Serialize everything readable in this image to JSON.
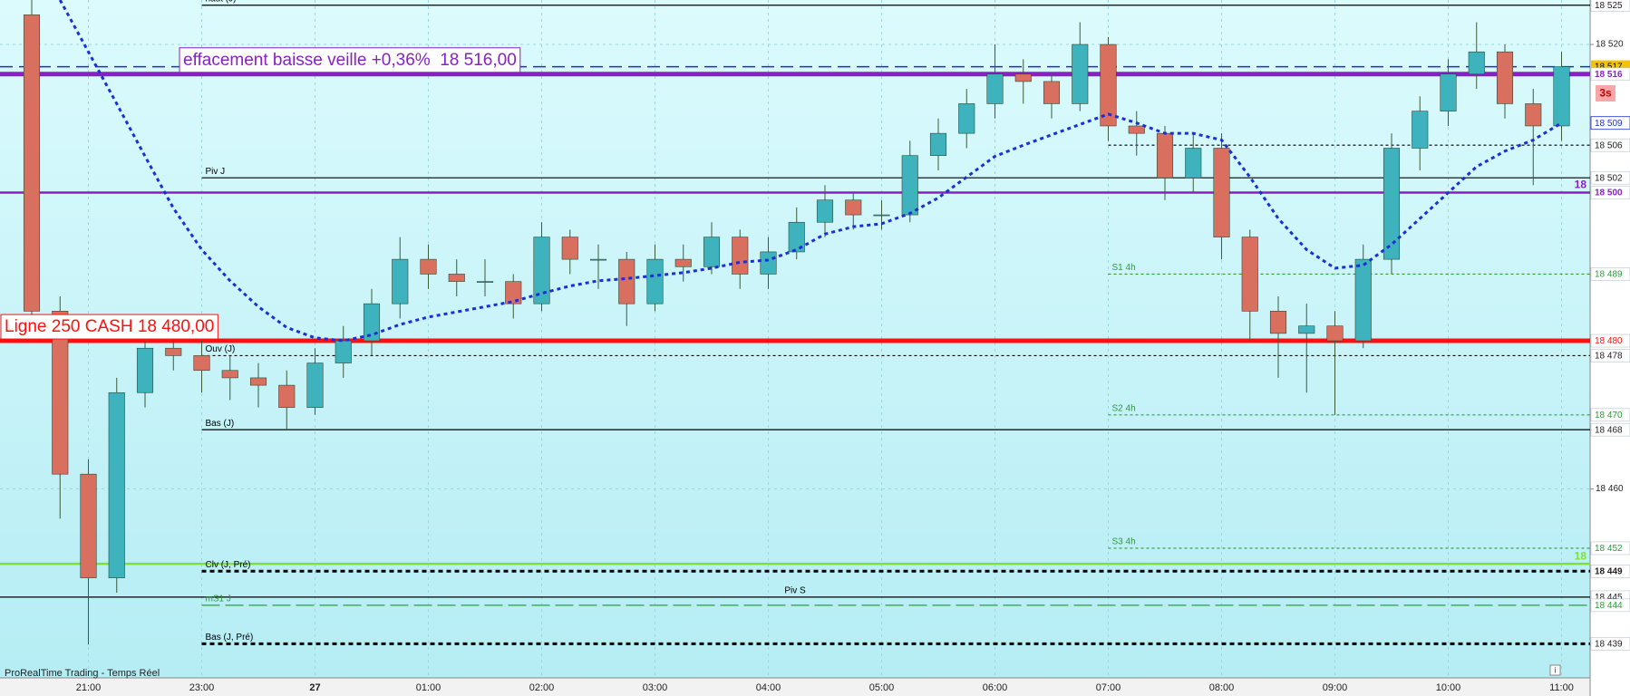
{
  "chart_data": {
    "type": "candlestick",
    "footer": "ProRealTime Trading - Temps Réel",
    "countdown": "3s",
    "info_icon": "i",
    "categories": [
      "20:30",
      "20:45",
      "21:00",
      "21:15",
      "21:30",
      "21:45",
      "23:00",
      "23:15",
      "23:30",
      "23:45",
      "00:00",
      "00:15",
      "00:30",
      "00:45",
      "01:00",
      "01:15",
      "01:30",
      "01:45",
      "02:00",
      "02:15",
      "02:30",
      "02:45",
      "03:00",
      "03:15",
      "03:30",
      "03:45",
      "04:00",
      "04:15",
      "04:30",
      "04:45",
      "05:00",
      "05:15",
      "05:30",
      "05:45",
      "06:00",
      "06:15",
      "06:30",
      "06:45",
      "07:00",
      "07:15",
      "07:30",
      "07:45",
      "08:00",
      "08:15",
      "08:30",
      "08:45",
      "09:00",
      "09:15",
      "09:30",
      "09:45",
      "10:00",
      "10:15",
      "10:30",
      "10:45",
      "11:00"
    ],
    "open": [
      18524,
      18484,
      18462,
      18448,
      18473,
      18479,
      18478,
      18476,
      18475,
      18474,
      18471,
      18477,
      18480,
      18485,
      18491,
      18489,
      18488,
      18488,
      18485,
      18494,
      18491,
      18491,
      18485,
      18491,
      18490,
      18494,
      18489,
      18492,
      18496,
      18499,
      18497,
      18497,
      18505,
      18508,
      18512,
      18516,
      18515,
      18512,
      18520,
      18509,
      18508,
      18502,
      18506,
      18494,
      18484,
      18481,
      18482,
      18480,
      18491,
      18506,
      18511,
      18516,
      18519,
      18512,
      18509
    ],
    "high": [
      18526,
      18486,
      18464,
      18475,
      18481,
      18482,
      18480,
      18478,
      18477,
      18476,
      18479,
      18482,
      18487,
      18494,
      18493,
      18491,
      18491,
      18489,
      18496,
      18495,
      18493,
      18492,
      18493,
      18493,
      18496,
      18495,
      18494,
      18498,
      18501,
      18500,
      18499,
      18507,
      18510,
      18514,
      18520,
      18518,
      18516,
      18523,
      18521,
      18511,
      18509,
      18508,
      18508,
      18495,
      18486,
      18485,
      18484,
      18493,
      18508,
      18513,
      18518,
      18523,
      18520,
      18514,
      18519
    ],
    "low": [
      18480,
      18456,
      18439,
      18446,
      18471,
      18476,
      18473,
      18472,
      18471,
      18468,
      18470,
      18475,
      18478,
      18483,
      18487,
      18486,
      18486,
      18483,
      18484,
      18489,
      18487,
      18482,
      18484,
      18488,
      18489,
      18487,
      18487,
      18491,
      18494,
      18495,
      18495,
      18496,
      18503,
      18506,
      18510,
      18512,
      18510,
      18511,
      18507,
      18505,
      18499,
      18500,
      18491,
      18480,
      18475,
      18473,
      18470,
      18479,
      18489,
      18503,
      18509,
      18514,
      18510,
      18501,
      18507
    ],
    "close": [
      18484,
      18462,
      18448,
      18473,
      18479,
      18478,
      18476,
      18475,
      18474,
      18471,
      18477,
      18480,
      18485,
      18491,
      18489,
      18488,
      18488,
      18485,
      18494,
      18491,
      18491,
      18485,
      18491,
      18490,
      18494,
      18489,
      18492,
      18496,
      18499,
      18497,
      18497,
      18505,
      18508,
      18512,
      18516,
      18515,
      18512,
      18520,
      18509,
      18508,
      18502,
      18506,
      18494,
      18484,
      18481,
      18482,
      18480,
      18491,
      18506,
      18511,
      18516,
      18519,
      18512,
      18509,
      18517
    ],
    "up_color": "#3fb3bd",
    "down_color": "#d9705f",
    "ma": {
      "color": "#1a2fd8",
      "end_label": "18 509",
      "values": [
        null,
        18526.0,
        18519.0,
        18512.0,
        18504.9,
        18497.9,
        18492.3,
        18488.1,
        18484.6,
        18481.8,
        18480.4,
        18480.0,
        18480.8,
        18482.2,
        18483.2,
        18483.9,
        18484.6,
        18485.3,
        18486.4,
        18487.4,
        18488.1,
        18488.4,
        18488.8,
        18489.2,
        18489.8,
        18490.6,
        18490.9,
        18492.3,
        18494.4,
        18495.4,
        18495.8,
        18497.2,
        18499.3,
        18502.1,
        18504.9,
        18506.4,
        18507.8,
        18509.2,
        18510.6,
        18509.4,
        18508.0,
        18508.0,
        18507.1,
        18502.1,
        18496.5,
        18492.3,
        18489.8,
        18490.2,
        18493.0,
        18496.5,
        18500.0,
        18503.5,
        18505.6,
        18507.1,
        18509.4
      ]
    },
    "ylim": [
      18434.5,
      18526
    ],
    "yticks": [
      {
        "value": 18460,
        "label": "18 460"
      },
      {
        "value": 18520,
        "label": "18 520"
      }
    ],
    "xticks": [
      "21:00",
      "23:00",
      {
        "value": "00:00",
        "label": "27"
      },
      "01:00",
      "02:00",
      "03:00",
      "04:00",
      "05:00",
      "06:00",
      "07:00",
      "08:00",
      "09:00",
      "10:00",
      "11:00"
    ],
    "grid": true,
    "levels": [
      {
        "name": "haut (J)",
        "value": 18525.3,
        "color": "#000000",
        "style": "solid",
        "start": "23:00",
        "axis_label": "18 525"
      },
      {
        "value": 18517,
        "color": "#1a2fd8",
        "style": "dashed",
        "axis_label": "18 517",
        "axis_bg": "#f5c400"
      },
      {
        "name": "effacement baisse veille +0,36%  18 516,00",
        "value": 18516,
        "color": "#8a1fc4",
        "style": "thick",
        "annotation": true,
        "axis_label": "18 516",
        "bold": true
      },
      {
        "value": 18506.4,
        "color": "#000000",
        "style": "dotted",
        "start": "07:00",
        "axis_label": "18 506"
      },
      {
        "name": "Piv J",
        "value": 18502,
        "color": "#000000",
        "style": "solid",
        "start": "23:00",
        "axis_label": "18 502"
      },
      {
        "value": 18500,
        "color": "#8a1fc4",
        "style": "medium",
        "axis_label": "18 500",
        "side_label": "18",
        "bold": true
      },
      {
        "name": "S1 4h",
        "value": 18489,
        "color": "#2e9a3a",
        "style": "dotted",
        "start": "07:00",
        "axis_label": "18 489"
      },
      {
        "name": "Ligne 250 CASH 18 480,00",
        "value": 18480,
        "color": "#ff1010",
        "style": "thick",
        "annotation": true,
        "axis_label": "18 480"
      },
      {
        "name": "Ouv (J)",
        "value": 18478,
        "color": "#000000",
        "style": "dotted",
        "start": "23:00",
        "axis_label": "18 478"
      },
      {
        "name": "S2 4h",
        "value": 18470,
        "color": "#2e9a3a",
        "style": "dotted",
        "start": "07:00",
        "axis_label": "18 470"
      },
      {
        "name": "Bas (J)",
        "value": 18468,
        "color": "#000000",
        "style": "solid",
        "start": "23:00",
        "axis_label": "18 468"
      },
      {
        "name": "S3 4h",
        "value": 18452,
        "color": "#2e9a3a",
        "style": "dotted",
        "start": "07:00",
        "axis_label": "18 452"
      },
      {
        "value": 18449.9,
        "color": "#7ee03a",
        "style": "medium",
        "side_label": "18"
      },
      {
        "name": "Clv (J, Pré)",
        "value": 18448.9,
        "color": "#000000",
        "style": "thick-dotted",
        "start": "23:00",
        "axis_label": "18 449",
        "bold": true
      },
      {
        "name": "Piv S",
        "value": 18445.4,
        "color": "#000000",
        "style": "solid",
        "label_align": "center",
        "axis_label": "18 445"
      },
      {
        "name": "mS1 J",
        "value": 18444.3,
        "color": "#2e9a3a",
        "style": "long-dashed",
        "start": "23:00",
        "axis_label": "18 444"
      },
      {
        "name": "Bas (J, Pré)",
        "value": 18439.1,
        "color": "#000000",
        "style": "thick-dotted",
        "start": "23:00",
        "axis_label": "18 439"
      }
    ]
  }
}
